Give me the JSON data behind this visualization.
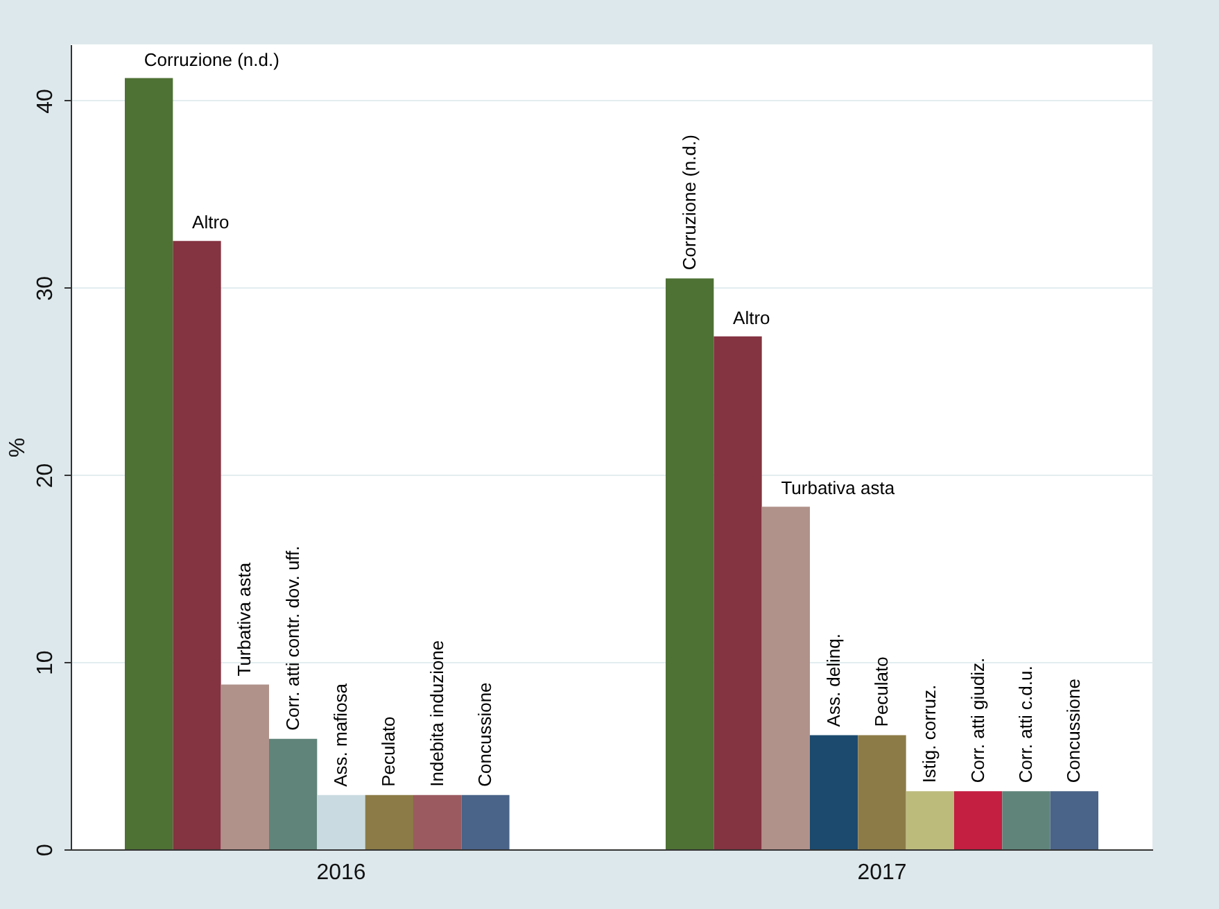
{
  "chart_data": {
    "type": "bar",
    "categories": [
      "2016",
      "2017"
    ],
    "ylabel": "%",
    "ylim": [
      0,
      43
    ],
    "yticks": [
      0,
      10,
      20,
      30,
      40
    ],
    "grid": "y",
    "series": [
      {
        "name": "Corruzione (n.d.)",
        "color": "#4e7134",
        "values": [
          41.2,
          30.5
        ]
      },
      {
        "name": "Altro",
        "color": "#843340",
        "values": [
          32.5,
          27.4
        ]
      },
      {
        "name": "Turbativa asta",
        "color": "#b0928b",
        "values": [
          8.8,
          18.3
        ]
      },
      {
        "name": "Corr. atti contr. dov. uff.",
        "color": "#60847a",
        "values": [
          5.9,
          null
        ]
      },
      {
        "name": "Ass. mafiosa",
        "color": "#c9dbe0",
        "values": [
          2.9,
          null
        ]
      },
      {
        "name": "Ass. delinq.",
        "color": "#1b4a6e",
        "values": [
          null,
          6.1
        ]
      },
      {
        "name": "Peculato",
        "color": "#8c7b47",
        "values": [
          2.9,
          6.1
        ]
      },
      {
        "name": "Indebita induzione",
        "color": "#9a5a5f",
        "values": [
          2.9,
          null
        ]
      },
      {
        "name": "Istig. corruz.",
        "color": "#bcbb7c",
        "values": [
          null,
          3.1
        ]
      },
      {
        "name": "Corr. atti giudiz.",
        "color": "#c41e40",
        "values": [
          null,
          3.1
        ]
      },
      {
        "name": "Corr. atti c.d.u.",
        "color": "#60847a",
        "values": [
          null,
          3.1
        ]
      },
      {
        "name": "Concussione",
        "color": "#4a6388",
        "values": [
          2.9,
          3.1
        ]
      }
    ]
  }
}
